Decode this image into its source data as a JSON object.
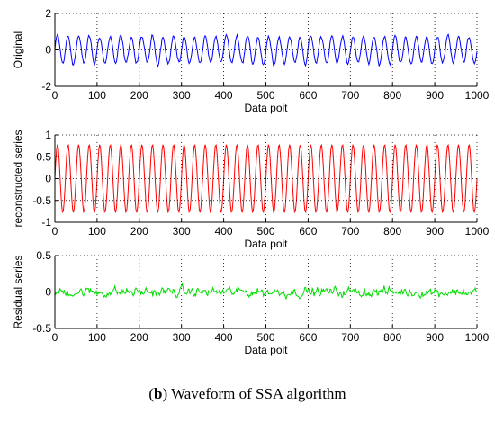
{
  "chart_data": [
    {
      "type": "line",
      "xlabel": "Data poit",
      "ylabel": "Original",
      "xlim": [
        0,
        1000
      ],
      "ylim": [
        -2,
        2
      ],
      "xticks": [
        0,
        100,
        200,
        300,
        400,
        500,
        600,
        700,
        800,
        900,
        1000
      ],
      "yticks": [
        "2",
        "0",
        "-2"
      ],
      "grid": "dotted",
      "series": [
        {
          "color": "#0000ff",
          "period": 25,
          "amplitude": 0.75,
          "noise": 0.12,
          "x": [
            0,
            1000
          ]
        }
      ]
    },
    {
      "type": "line",
      "xlabel": "Data poit",
      "ylabel": "reconstructed series",
      "xlim": [
        0,
        1000
      ],
      "ylim": [
        -1,
        1
      ],
      "xticks": [
        0,
        100,
        200,
        300,
        400,
        500,
        600,
        700,
        800,
        900,
        1000
      ],
      "yticks": [
        "1",
        "0.5",
        "0",
        "-0.5",
        "-1"
      ],
      "grid": "dotted",
      "series": [
        {
          "color": "#ff0000",
          "period": 25,
          "amplitude": 0.78,
          "noise": 0,
          "x": [
            0,
            1000
          ]
        }
      ]
    },
    {
      "type": "line",
      "xlabel": "Data poit",
      "ylabel": "Residual series",
      "xlim": [
        0,
        1000
      ],
      "ylim": [
        -0.5,
        0.5
      ],
      "xticks": [
        0,
        100,
        200,
        300,
        400,
        500,
        600,
        700,
        800,
        900,
        1000
      ],
      "yticks": [
        "0.5",
        "0",
        "-0.5"
      ],
      "grid": "dotted",
      "series": [
        {
          "color": "#00dd00",
          "period": 0,
          "amplitude": 0,
          "noise": 0.07,
          "x": [
            0,
            1000
          ]
        }
      ]
    }
  ],
  "caption": {
    "label": "b",
    "text": ") Waveform of SSA algorithm",
    "open": "("
  }
}
